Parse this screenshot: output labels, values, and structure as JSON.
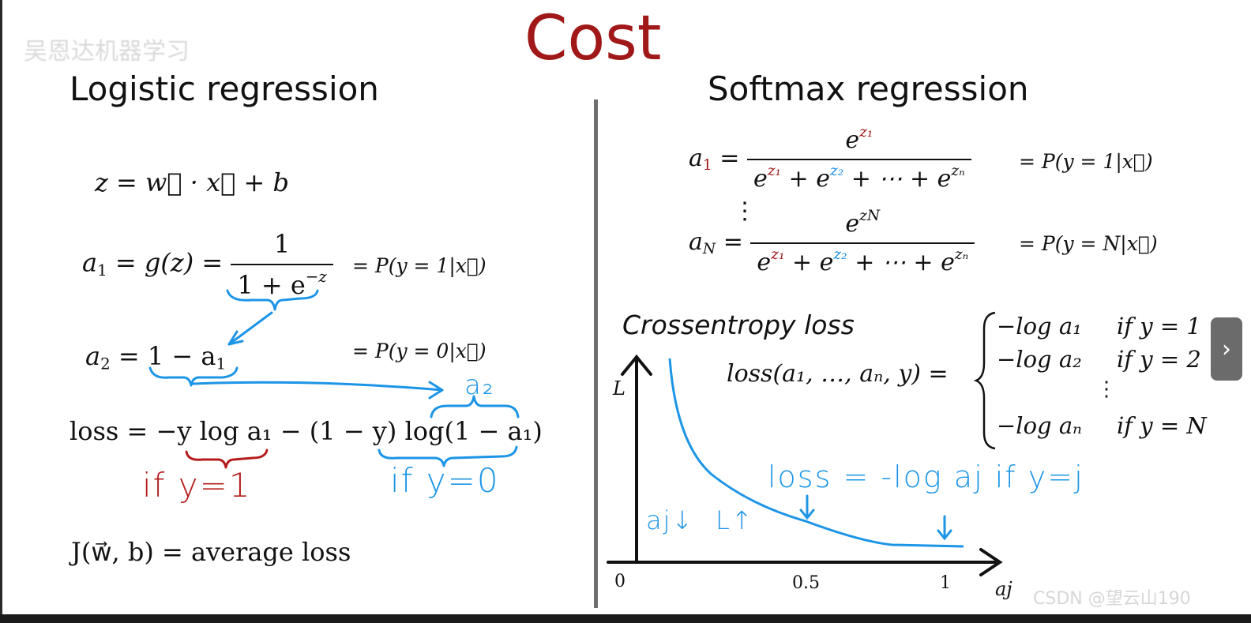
{
  "watermark": "吴恩达机器学习",
  "title": "Cost",
  "left": {
    "heading": "Logistic regression",
    "eq_z": "z = w⃗ · x⃗ + b",
    "eq_a1_lhs": "a",
    "eq_a1_sub": "1",
    "eq_a1_mid": " = g(z) = ",
    "eq_a1_num": "1",
    "eq_a1_den": "1 + e",
    "eq_a1_den_sup": "−z",
    "eq_a1_prob": "= P(y = 1|x⃗)",
    "eq_a2_lhs": "a",
    "eq_a2_sub": "2",
    "eq_a2_rhs": " = 1 − a",
    "eq_a2_rhs_sub": "1",
    "eq_a2_prob": "= P(y = 0|x⃗)",
    "eq_loss": "loss = −y log a₁ − (1 − y) log(1 − a₁)",
    "note_a2": "a₂",
    "note_if_y1": "if y=1",
    "note_if_y0": "if y=0",
    "eq_J": "J(w⃗, b) = average loss"
  },
  "right": {
    "heading": "Softmax regression",
    "a1_lhs": "a",
    "a1_lhs_sub": "1",
    "a1_num_e": "e",
    "a1_num_sup": "z₁",
    "den_term_1": "e",
    "den_sup_1": "z₁",
    "den_term_2": " + e",
    "den_sup_2": "z₂",
    "den_term_3": " + ⋯ + e",
    "den_sup_3": "zₙ",
    "a1_prob": "= P(y = 1|x⃗)",
    "vdots": "⋮",
    "aN_lhs": "a",
    "aN_lhs_sub": "N",
    "aN_num_e": "e",
    "aN_num_sup": "zN",
    "aN_prob": "= P(y = N|x⃗)",
    "ce_label": "Crossentropy loss",
    "loss_fn": "loss(a₁, …, aₙ, y) = ",
    "cases": [
      {
        "expr": "−log a₁",
        "cond": "if y = 1"
      },
      {
        "expr": "−log a₂",
        "cond": "if y = 2"
      },
      {
        "expr": "⋮",
        "cond": ""
      },
      {
        "expr": "−log aₙ",
        "cond": "if y = N"
      }
    ],
    "note_loss": "loss = -log aj if y=j",
    "note_aj_down": "aj↓",
    "note_L_up": "L↑",
    "plot": {
      "y_axis_label": "L",
      "x_axis_label": "aj",
      "tick_0": "0",
      "tick_05": "0.5",
      "tick_1": "1"
    }
  },
  "csdn_credit": "CSDN @望云山190",
  "next_icon": "›",
  "colors": {
    "title": "#a01818",
    "hand_blue": "#1d95e6",
    "hand_red": "#b51d1d"
  }
}
